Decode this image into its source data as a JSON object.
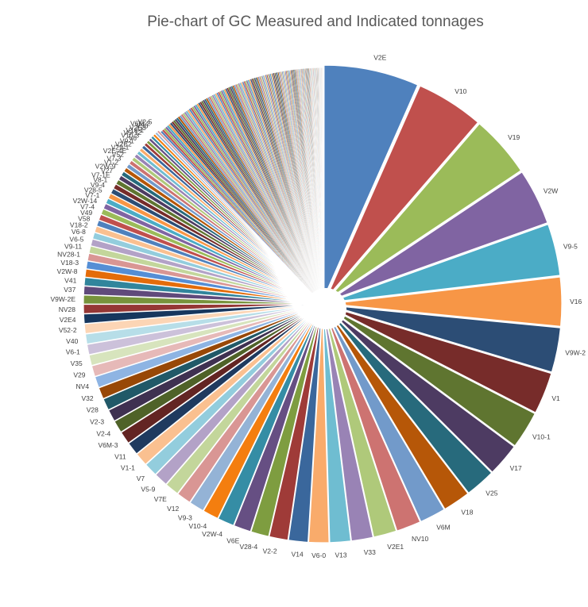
{
  "chart_data": {
    "type": "pie",
    "title": "Pie-chart of GC Measured and Indicated tonnages",
    "xlabel": "",
    "ylabel": "",
    "legend": "none",
    "exploded": true,
    "labeled_slices": [
      {
        "label": "V2E",
        "value": 6.6,
        "color": "#4F81BD"
      },
      {
        "label": "V10",
        "value": 4.7,
        "color": "#C0504D"
      },
      {
        "label": "V19",
        "value": 4.3,
        "color": "#9BBB59"
      },
      {
        "label": "V2W",
        "value": 3.9,
        "color": "#8064A2"
      },
      {
        "label": "V9-5",
        "value": 3.6,
        "color": "#4BACC6"
      },
      {
        "label": "V16",
        "value": 3.4,
        "color": "#F79646"
      },
      {
        "label": "V9W-2",
        "value": 3.1,
        "color": "#2C4D75"
      },
      {
        "label": "V1",
        "value": 2.9,
        "color": "#772C2A"
      },
      {
        "label": "V10-1",
        "value": 2.6,
        "color": "#5F7530"
      },
      {
        "label": "V17",
        "value": 2.3,
        "color": "#4D3B62"
      },
      {
        "label": "V25",
        "value": 2.1,
        "color": "#276A7C"
      },
      {
        "label": "V18",
        "value": 1.9,
        "color": "#B65708"
      },
      {
        "label": "V6M",
        "value": 1.8,
        "color": "#729ACA"
      },
      {
        "label": "NV10",
        "value": 1.7,
        "color": "#CD7371"
      },
      {
        "label": "V2E1",
        "value": 1.6,
        "color": "#AFC97A"
      },
      {
        "label": "V33",
        "value": 1.5,
        "color": "#9983B5"
      },
      {
        "label": "V13",
        "value": 1.45,
        "color": "#6FBDD1"
      },
      {
        "label": "V6-0",
        "value": 1.4,
        "color": "#F9AB6B"
      },
      {
        "label": "V14",
        "value": 1.35,
        "color": "#3A679C"
      },
      {
        "label": "V2-2",
        "value": 1.3,
        "color": "#9F3B38"
      },
      {
        "label": "V28-4",
        "value": 1.25,
        "color": "#7E9D40"
      },
      {
        "label": "V6E",
        "value": 1.2,
        "color": "#664F83"
      },
      {
        "label": "V2W-4",
        "value": 1.15,
        "color": "#358DA5"
      },
      {
        "label": "V10-4",
        "value": 1.1,
        "color": "#F47E0F"
      },
      {
        "label": "V9-3",
        "value": 1.05,
        "color": "#94B3D6"
      },
      {
        "label": "V12",
        "value": 1.0,
        "color": "#D99694"
      },
      {
        "label": "V7E",
        "value": 0.98,
        "color": "#C3D69B"
      },
      {
        "label": "V5-9",
        "value": 0.96,
        "color": "#B3A2C7"
      },
      {
        "label": "V7",
        "value": 0.94,
        "color": "#93CDDD"
      },
      {
        "label": "V1-1",
        "value": 0.92,
        "color": "#FAC090"
      },
      {
        "label": "V11",
        "value": 0.9,
        "color": "#1F3A5F"
      },
      {
        "label": "V6M-3",
        "value": 0.88,
        "color": "#632523"
      },
      {
        "label": "V2-4",
        "value": 0.86,
        "color": "#4F6228"
      },
      {
        "label": "V2-3",
        "value": 0.84,
        "color": "#3F3151"
      },
      {
        "label": "V28",
        "value": 0.82,
        "color": "#215968"
      },
      {
        "label": "V32",
        "value": 0.8,
        "color": "#984807"
      },
      {
        "label": "NV4",
        "value": 0.78,
        "color": "#8EB4E3"
      },
      {
        "label": "V29",
        "value": 0.76,
        "color": "#E6B9B8"
      },
      {
        "label": "V35",
        "value": 0.74,
        "color": "#D7E4BD"
      },
      {
        "label": "V6-1",
        "value": 0.72,
        "color": "#CCC1DA"
      },
      {
        "label": "V40",
        "value": 0.7,
        "color": "#B7DEE8"
      },
      {
        "label": "V52-2",
        "value": 0.68,
        "color": "#FCD5B5"
      },
      {
        "label": "V2E4",
        "value": 0.66,
        "color": "#17375E"
      },
      {
        "label": "NV28",
        "value": 0.64,
        "color": "#953735"
      },
      {
        "label": "V9W-2E",
        "value": 0.62,
        "color": "#77933C"
      },
      {
        "label": "V37",
        "value": 0.6,
        "color": "#604A7B"
      },
      {
        "label": "V41",
        "value": 0.58,
        "color": "#31859C"
      },
      {
        "label": "V2W-8",
        "value": 0.56,
        "color": "#E46C0A"
      },
      {
        "label": "V18-3",
        "value": 0.54,
        "color": "#558ED5"
      },
      {
        "label": "NV28-1",
        "value": 0.52,
        "color": "#D99694"
      },
      {
        "label": "V9-11",
        "value": 0.5,
        "color": "#C3D69B"
      },
      {
        "label": "V6-5",
        "value": 0.48,
        "color": "#B3A2C7"
      },
      {
        "label": "V6-8",
        "value": 0.46,
        "color": "#93CDDD"
      },
      {
        "label": "V18-2",
        "value": 0.44,
        "color": "#FAC090"
      },
      {
        "label": "V58",
        "value": 0.42,
        "color": "#4F81BD"
      },
      {
        "label": "V49",
        "value": 0.41,
        "color": "#C0504D"
      },
      {
        "label": "V7-4",
        "value": 0.4,
        "color": "#9BBB59"
      },
      {
        "label": "V2W-14",
        "value": 0.39,
        "color": "#8064A2"
      },
      {
        "label": "V7-1",
        "value": 0.38,
        "color": "#4BACC6"
      },
      {
        "label": "V28-5",
        "value": 0.37,
        "color": "#F79646"
      },
      {
        "label": "V9-4",
        "value": 0.36,
        "color": "#2C4D75"
      },
      {
        "label": "V8-1",
        "value": 0.35,
        "color": "#772C2A"
      },
      {
        "label": "V7-1E",
        "value": 0.34,
        "color": "#5F7530"
      },
      {
        "label": "V27",
        "value": 0.33,
        "color": "#4D3B62"
      },
      {
        "label": "V2W-9",
        "value": 0.32,
        "color": "#276A7C"
      },
      {
        "label": "V1-2",
        "value": 0.31,
        "color": "#B65708"
      },
      {
        "label": "V7-3",
        "value": 0.3,
        "color": "#729ACA"
      },
      {
        "label": "V52",
        "value": 0.29,
        "color": "#CD7371"
      },
      {
        "label": "V2E-4E",
        "value": 0.28,
        "color": "#AFC97A"
      },
      {
        "label": "V29-1",
        "value": 0.27,
        "color": "#9983B5"
      },
      {
        "label": "V2E2",
        "value": 0.26,
        "color": "#6FBDD1"
      },
      {
        "label": "V9-1",
        "value": 0.25,
        "color": "#F9AB6B"
      },
      {
        "label": "V6",
        "value": 0.24,
        "color": "#3A679C"
      },
      {
        "label": "V10-3",
        "value": 0.23,
        "color": "#9F3B38"
      },
      {
        "label": "V5-12",
        "value": 0.22,
        "color": "#7E9D40"
      },
      {
        "label": "V18-1",
        "value": 0.21,
        "color": "#664F83"
      },
      {
        "label": "V2E3",
        "value": 0.2,
        "color": "#358DA5"
      },
      {
        "label": "V36",
        "value": 0.19,
        "color": "#F47E0F"
      },
      {
        "label": "V6M-2",
        "value": 0.18,
        "color": "#94B3D6"
      },
      {
        "label": "V2-5",
        "value": 0.17,
        "color": "#D99694"
      }
    ],
    "minor_slices": {
      "count": 150,
      "values": [
        0.14,
        0.135,
        0.13,
        0.125,
        0.12,
        0.115,
        0.11,
        0.105,
        0.1,
        0.095,
        0.09,
        0.085,
        0.08,
        0.075,
        0.07,
        0.065,
        0.06,
        0.055,
        0.05,
        0.045,
        0.04,
        0.035,
        0.03,
        0.025,
        0.02
      ],
      "palette": [
        "#4F81BD",
        "#C0504D",
        "#9BBB59",
        "#8064A2",
        "#4BACC6",
        "#F79646",
        "#2C4D75",
        "#772C2A",
        "#5F7530",
        "#4D3B62",
        "#276A7C",
        "#B65708",
        "#729ACA",
        "#CD7371",
        "#AFC97A",
        "#9983B5",
        "#6FBDD1",
        "#F9AB6B"
      ]
    }
  }
}
